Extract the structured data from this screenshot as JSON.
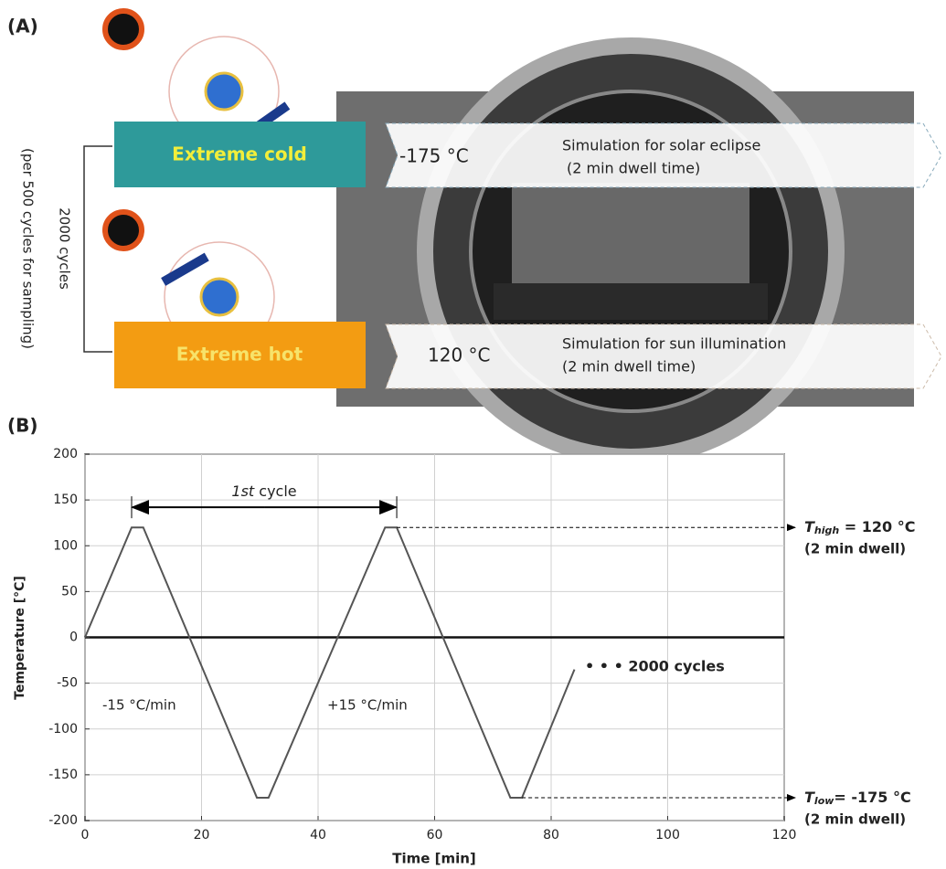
{
  "panel_a": {
    "label": "(A)",
    "cold_box": "Extreme cold",
    "hot_box": "Extreme hot",
    "cycles": "2000 cycles",
    "sampling": "(per 500 cycles for sampling)",
    "cold_temp": "-175 °C",
    "cold_desc": "Simulation for solar eclipse",
    "cold_dwell": "(2 min dwell time)",
    "hot_temp": "120 °C",
    "hot_desc": "Simulation for sun illumination",
    "hot_dwell": "(2 min dwell time)"
  },
  "panel_b_label": "(B)",
  "chart_data": {
    "type": "line",
    "x_label": "Time  [min]",
    "y_label": "Temperature [°C]",
    "series": [
      {
        "color": "#555555",
        "x": [
          0,
          8,
          10,
          29.5,
          31.5,
          51.5,
          53.5,
          73,
          75,
          84
        ],
        "values": [
          0,
          120,
          120,
          -175,
          -175,
          120,
          120,
          -175,
          -175,
          -35
        ]
      }
    ],
    "xlim": [
      0,
      120
    ],
    "xticks": [
      0,
      20,
      40,
      60,
      80,
      100,
      120
    ],
    "ylim": [
      -200,
      200
    ],
    "yticks": [
      -200,
      -150,
      -100,
      -50,
      0,
      50,
      100,
      150,
      200
    ],
    "grid": true,
    "annotations": {
      "cycle": [
        "1st",
        " cycle"
      ],
      "rate_down": "-15 °C/min",
      "rate_up": "+15 °C/min",
      "cycles": "• • • 2000 cycles",
      "t_high": [
        "T",
        "high",
        " = 120 °C"
      ],
      "dwell_high": "(2 min dwell)",
      "t_low": [
        "T",
        "low",
        "= -175 °C"
      ],
      "dwell_low": "(2 min dwell)"
    }
  }
}
